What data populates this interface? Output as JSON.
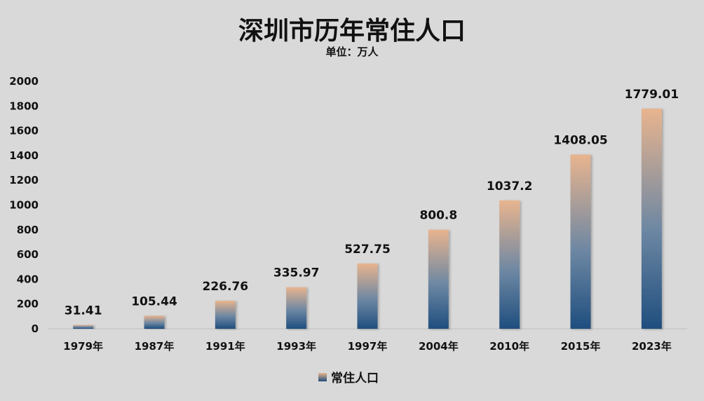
{
  "chart_data": {
    "type": "bar",
    "title": "深圳市历年常住人口",
    "subtitle": "单位：万人",
    "categories": [
      "1979年",
      "1987年",
      "1991年",
      "1993年",
      "1997年",
      "2004年",
      "2010年",
      "2015年",
      "2023年"
    ],
    "series": [
      {
        "name": "常住人口",
        "values": [
          31.41,
          105.44,
          226.76,
          335.97,
          527.75,
          800.8,
          1037.2,
          1408.05,
          1779.01
        ],
        "value_labels": [
          "31.41",
          "105.44",
          "226.76",
          "335.97",
          "527.75",
          "800.8",
          "1037.2",
          "1408.05",
          "1779.01"
        ]
      }
    ],
    "ylim": [
      0,
      2000
    ],
    "yticks": [
      0,
      200,
      400,
      600,
      800,
      1000,
      1200,
      1400,
      1600,
      1800,
      2000
    ],
    "grid": false,
    "legend_position": "bottom",
    "colors": {
      "bar_bottom": "#1f4e7e",
      "bar_top": "#e8b48e",
      "background": "#d9d9d9"
    }
  }
}
